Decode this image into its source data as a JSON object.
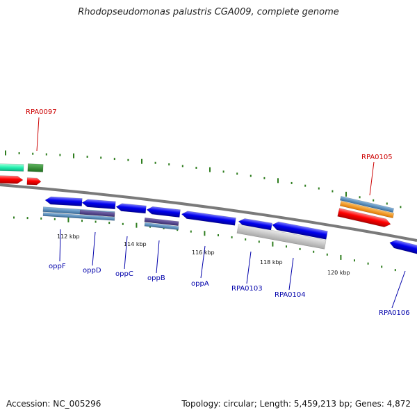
{
  "title": "Rhodopseudomonas palustris CGA009, complete genome",
  "footer": {
    "accession": "Accession: NC_005296",
    "summary": "Topology: circular; Length: 5,459,213 bp; Genes: 4,872"
  },
  "colors": {
    "backbone": "#808080",
    "tick": "#2e7d1e",
    "cds_forward_red": "#ff0000",
    "cds_reverse_blue": "#0000ee",
    "label_red": "#cc0000",
    "label_blue": "#0000aa"
  },
  "kbp_markers": [
    "112 kbp",
    "114 kbp",
    "116 kbp",
    "118 kbp",
    "120 kbp"
  ],
  "gene_labels": [
    {
      "name": "RPA0097",
      "color": "red"
    },
    {
      "name": "RPA0105",
      "color": "red"
    },
    {
      "name": "oppF",
      "color": "blue"
    },
    {
      "name": "oppD",
      "color": "blue"
    },
    {
      "name": "oppC",
      "color": "blue"
    },
    {
      "name": "oppB",
      "color": "blue"
    },
    {
      "name": "oppA",
      "color": "blue"
    },
    {
      "name": "RPA0103",
      "color": "blue"
    },
    {
      "name": "RPA0104",
      "color": "blue"
    },
    {
      "name": "RPA0106",
      "color": "blue"
    }
  ]
}
